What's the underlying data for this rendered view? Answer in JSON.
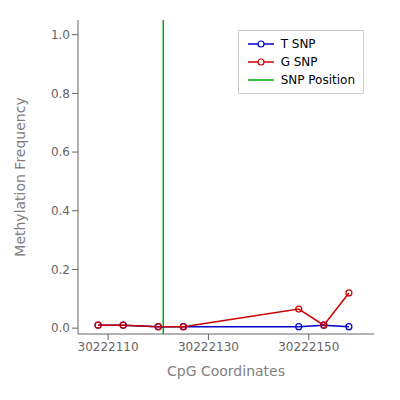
{
  "chart_data": {
    "type": "line",
    "xlabel": "CpG Coordinates",
    "ylabel": "Methylation Frequency",
    "x": [
      30222108,
      30222113,
      30222120,
      30222125,
      30222148,
      30222153,
      30222158
    ],
    "series": [
      {
        "name": "T SNP",
        "color": "#0000cc",
        "marker": "circle",
        "line_style": "solid",
        "values": [
          0.01,
          0.01,
          0.005,
          0.005,
          0.005,
          0.01,
          0.005
        ]
      },
      {
        "name": "G SNP",
        "color": "#cc0000",
        "marker": "circle",
        "line_style": "solid",
        "values": [
          0.01,
          0.01,
          0.005,
          0.005,
          0.065,
          0.01,
          0.12
        ]
      }
    ],
    "vlines": [
      {
        "name": "SNP Position",
        "value": 30222121,
        "color": "#00aa00"
      }
    ],
    "xlim": [
      30222104,
      30222163
    ],
    "ylim": [
      -0.02,
      1.05
    ],
    "xticks": [
      30222110,
      30222130,
      30222150
    ],
    "yticks": [
      {
        "value": 0,
        "label": "0.0"
      },
      0.2,
      0.4,
      0.6,
      0.8,
      {
        "value": 1,
        "label": "1.0"
      }
    ],
    "legend": "upper right",
    "grid": false
  }
}
